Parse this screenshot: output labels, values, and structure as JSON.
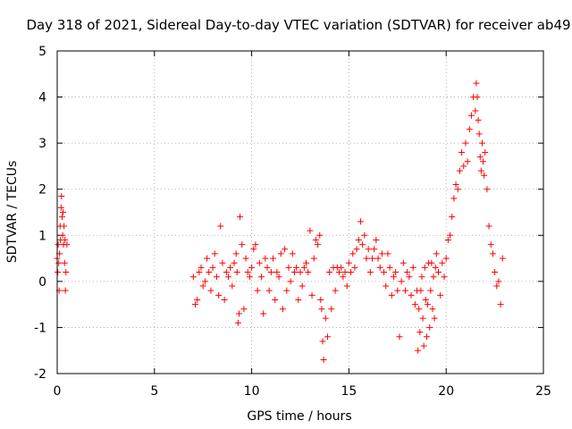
{
  "chart_data": {
    "type": "scatter",
    "title": "Day 318 of 2021, Sidereal Day-to-day VTEC variation (SDTVAR) for receiver ab49",
    "xlabel": "GPS time / hours",
    "ylabel": "SDTVAR / TECUs",
    "xlim": [
      0,
      25
    ],
    "ylim": [
      -2,
      5
    ],
    "x_ticks": [
      0,
      5,
      10,
      15,
      20,
      25
    ],
    "y_ticks": [
      -2,
      -1,
      0,
      1,
      2,
      3,
      4,
      5
    ],
    "x_tick_labels": [
      "0",
      "5",
      "10",
      "15",
      "20",
      "25"
    ],
    "y_tick_labels": [
      "-2",
      "-1",
      "0",
      "1",
      "2",
      "3",
      "4",
      "5"
    ],
    "grid": true,
    "marker": "+",
    "color": "#ff0000",
    "series": [
      {
        "name": "SDTVAR",
        "x": [
          0.0,
          0.03,
          0.05,
          0.08,
          0.1,
          0.12,
          0.15,
          0.17,
          0.2,
          0.22,
          0.25,
          0.28,
          0.3,
          0.32,
          0.35,
          0.38,
          0.4,
          0.42,
          0.45,
          0.5,
          7.0,
          7.1,
          7.2,
          7.3,
          7.4,
          7.5,
          7.6,
          7.7,
          7.8,
          7.9,
          8.0,
          8.1,
          8.2,
          8.3,
          8.4,
          8.5,
          8.6,
          8.7,
          8.8,
          8.9,
          9.0,
          9.1,
          9.2,
          9.25,
          9.3,
          9.35,
          9.4,
          9.5,
          9.6,
          9.7,
          9.8,
          9.9,
          10.0,
          10.1,
          10.2,
          10.3,
          10.4,
          10.5,
          10.6,
          10.7,
          10.8,
          10.9,
          11.0,
          11.1,
          11.2,
          11.3,
          11.4,
          11.5,
          11.6,
          11.7,
          11.8,
          11.9,
          12.0,
          12.1,
          12.2,
          12.3,
          12.4,
          12.5,
          12.6,
          12.7,
          12.8,
          12.9,
          13.0,
          13.1,
          13.2,
          13.3,
          13.4,
          13.5,
          13.55,
          13.6,
          13.65,
          13.7,
          13.8,
          13.9,
          14.0,
          14.1,
          14.2,
          14.3,
          14.4,
          14.5,
          14.6,
          14.7,
          14.8,
          14.9,
          15.0,
          15.1,
          15.2,
          15.3,
          15.4,
          15.5,
          15.6,
          15.7,
          15.8,
          15.9,
          16.0,
          16.1,
          16.2,
          16.3,
          16.4,
          16.5,
          16.6,
          16.7,
          16.8,
          16.9,
          17.0,
          17.1,
          17.2,
          17.3,
          17.4,
          17.5,
          17.6,
          17.7,
          17.8,
          17.9,
          18.0,
          18.1,
          18.2,
          18.3,
          18.4,
          18.5,
          18.55,
          18.6,
          18.65,
          18.7,
          18.75,
          18.8,
          18.85,
          18.9,
          18.95,
          19.0,
          19.05,
          19.1,
          19.15,
          19.2,
          19.25,
          19.3,
          19.35,
          19.4,
          19.45,
          19.5,
          19.6,
          19.7,
          19.8,
          19.9,
          20.0,
          20.1,
          20.2,
          20.3,
          20.4,
          20.5,
          20.6,
          20.7,
          20.8,
          20.9,
          21.0,
          21.1,
          21.2,
          21.3,
          21.4,
          21.5,
          21.55,
          21.6,
          21.65,
          21.7,
          21.75,
          21.8,
          21.85,
          21.9,
          21.95,
          22.0,
          22.1,
          22.2,
          22.3,
          22.4,
          22.5,
          22.6,
          22.7,
          22.8,
          22.9
        ],
        "y": [
          0.5,
          0.2,
          0.8,
          0.4,
          -0.2,
          0.6,
          1.2,
          0.9,
          1.6,
          1.85,
          1.4,
          1.0,
          1.5,
          0.8,
          1.2,
          0.4,
          0.9,
          -0.2,
          0.2,
          0.8,
          0.1,
          -0.5,
          -0.4,
          0.2,
          0.3,
          -0.1,
          0.0,
          0.5,
          0.2,
          -0.2,
          0.3,
          0.6,
          0.1,
          -0.3,
          1.2,
          0.4,
          -0.4,
          0.2,
          0.1,
          0.3,
          -0.1,
          0.4,
          0.6,
          0.2,
          -0.9,
          -0.7,
          1.4,
          0.8,
          -0.6,
          0.5,
          0.2,
          0.1,
          0.3,
          0.7,
          0.8,
          -0.2,
          0.4,
          0.1,
          -0.7,
          0.5,
          0.3,
          -0.2,
          0.2,
          0.5,
          -0.4,
          0.2,
          0.1,
          0.6,
          -0.6,
          0.7,
          -0.2,
          0.3,
          0.0,
          0.6,
          0.2,
          0.3,
          -0.4,
          0.2,
          -0.1,
          0.3,
          0.4,
          0.2,
          1.1,
          -0.3,
          0.5,
          0.9,
          0.8,
          1.0,
          -0.4,
          -0.6,
          -1.3,
          -1.7,
          -0.8,
          -1.2,
          0.2,
          -0.6,
          0.3,
          -0.2,
          0.3,
          0.2,
          0.3,
          0.1,
          0.2,
          -0.1,
          0.4,
          0.2,
          0.6,
          0.3,
          0.7,
          0.9,
          1.3,
          0.8,
          1.0,
          0.5,
          0.7,
          0.2,
          0.5,
          0.7,
          0.9,
          0.5,
          0.3,
          0.6,
          0.2,
          -0.1,
          0.6,
          0.3,
          -0.3,
          0.1,
          0.2,
          -0.2,
          -1.2,
          0.0,
          0.4,
          -0.2,
          0.2,
          0.1,
          -0.3,
          0.3,
          -0.5,
          -0.2,
          -1.5,
          -0.6,
          -1.1,
          -0.2,
          0.1,
          -0.8,
          -1.4,
          0.3,
          -0.4,
          -1.2,
          -0.5,
          0.4,
          -1.0,
          -0.2,
          0.4,
          -0.6,
          0.1,
          -0.8,
          0.3,
          0.6,
          0.2,
          -0.3,
          0.4,
          0.1,
          0.5,
          0.9,
          1.0,
          1.4,
          1.8,
          2.1,
          2.0,
          2.4,
          2.8,
          2.5,
          3.0,
          2.6,
          3.3,
          3.6,
          4.0,
          3.7,
          4.3,
          4.0,
          3.5,
          3.2,
          2.7,
          2.4,
          3.0,
          2.6,
          2.3,
          2.8,
          2.0,
          1.2,
          0.8,
          0.6,
          0.2,
          -0.1,
          0.0,
          -0.5,
          0.5
        ]
      }
    ]
  }
}
